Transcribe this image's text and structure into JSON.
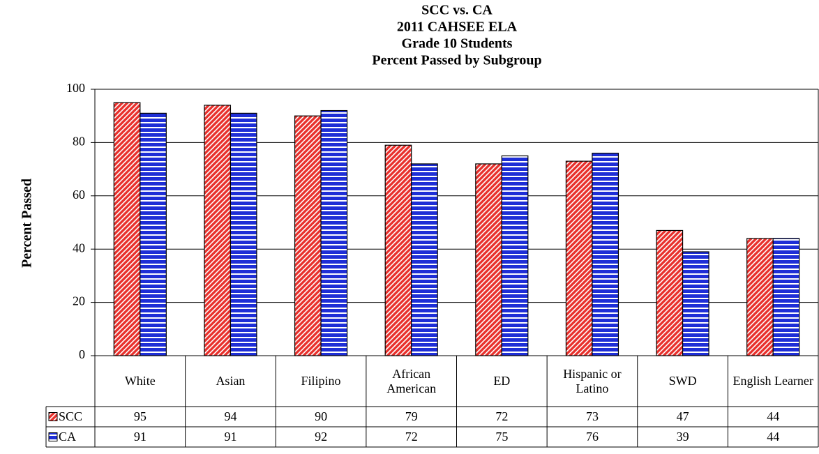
{
  "chart_data": {
    "type": "bar",
    "title": [
      "SCC vs. CA",
      "2011 CAHSEE ELA",
      "Grade 10 Students",
      "Percent Passed by Subgroup"
    ],
    "ylabel": "Percent Passed",
    "categories": [
      "White",
      "Asian",
      "Filipino",
      "African American",
      "ED",
      "Hispanic or Latino",
      "SWD",
      "English Learner"
    ],
    "series": [
      {
        "name": "SCC",
        "color": "#e8302c",
        "pattern": "diagonal",
        "values": [
          95,
          94,
          90,
          79,
          72,
          73,
          47,
          44
        ]
      },
      {
        "name": "CA",
        "color": "#1e2ed6",
        "pattern": "horizontal",
        "values": [
          91,
          91,
          92,
          72,
          75,
          76,
          39,
          44
        ]
      }
    ],
    "ylim": [
      0,
      100
    ],
    "yticks": [
      0,
      20,
      40,
      60,
      80,
      100
    ],
    "grid": true,
    "data_table": true
  }
}
